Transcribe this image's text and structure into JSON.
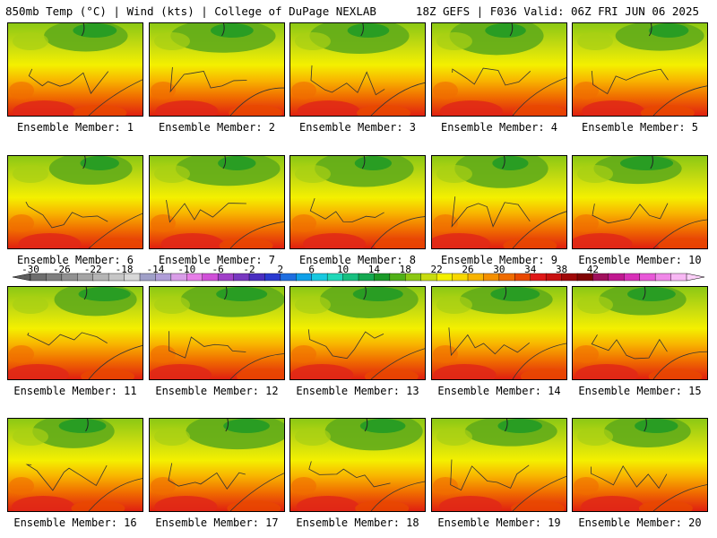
{
  "header": {
    "left": "850mb Temp (°C) | Wind (kts) | College of DuPage NEXLAB",
    "right": "18Z GEFS | F036 Valid: 06Z FRI JUN 06 2025"
  },
  "member_label_prefix": "Ensemble Member: ",
  "members": [
    1,
    2,
    3,
    4,
    5,
    6,
    7,
    8,
    9,
    10,
    11,
    12,
    13,
    14,
    15,
    16,
    17,
    18,
    19,
    20
  ],
  "colorbar": {
    "tick_labels": [
      "-30",
      "-26",
      "-22",
      "-18",
      "-14",
      "-10",
      "-6",
      "-2",
      "2",
      "6",
      "10",
      "14",
      "18",
      "22",
      "26",
      "30",
      "34",
      "38",
      "42"
    ],
    "colors": [
      "#6e6e6e",
      "#7f7f7f",
      "#919191",
      "#a4a4a4",
      "#b5b5b5",
      "#c6c6c6",
      "#d8d8d8",
      "#a0a0c8",
      "#b09ed8",
      "#d99ee8",
      "#e77ee8",
      "#d050d8",
      "#a040c8",
      "#7838c0",
      "#4a2ec0",
      "#2a3ad0",
      "#1f6ee0",
      "#10a0e8",
      "#18c8e0",
      "#20d8b8",
      "#18c080",
      "#14a850",
      "#1a9a28",
      "#50b018",
      "#8cc814",
      "#c8dc10",
      "#f4f000",
      "#f8d800",
      "#f8b400",
      "#f49000",
      "#f06c00",
      "#e84800",
      "#e01818",
      "#c81010",
      "#a00808",
      "#800404",
      "#a0105c",
      "#c01890",
      "#d830b8",
      "#e858d8",
      "#f088e8",
      "#f8b8f4"
    ]
  }
}
